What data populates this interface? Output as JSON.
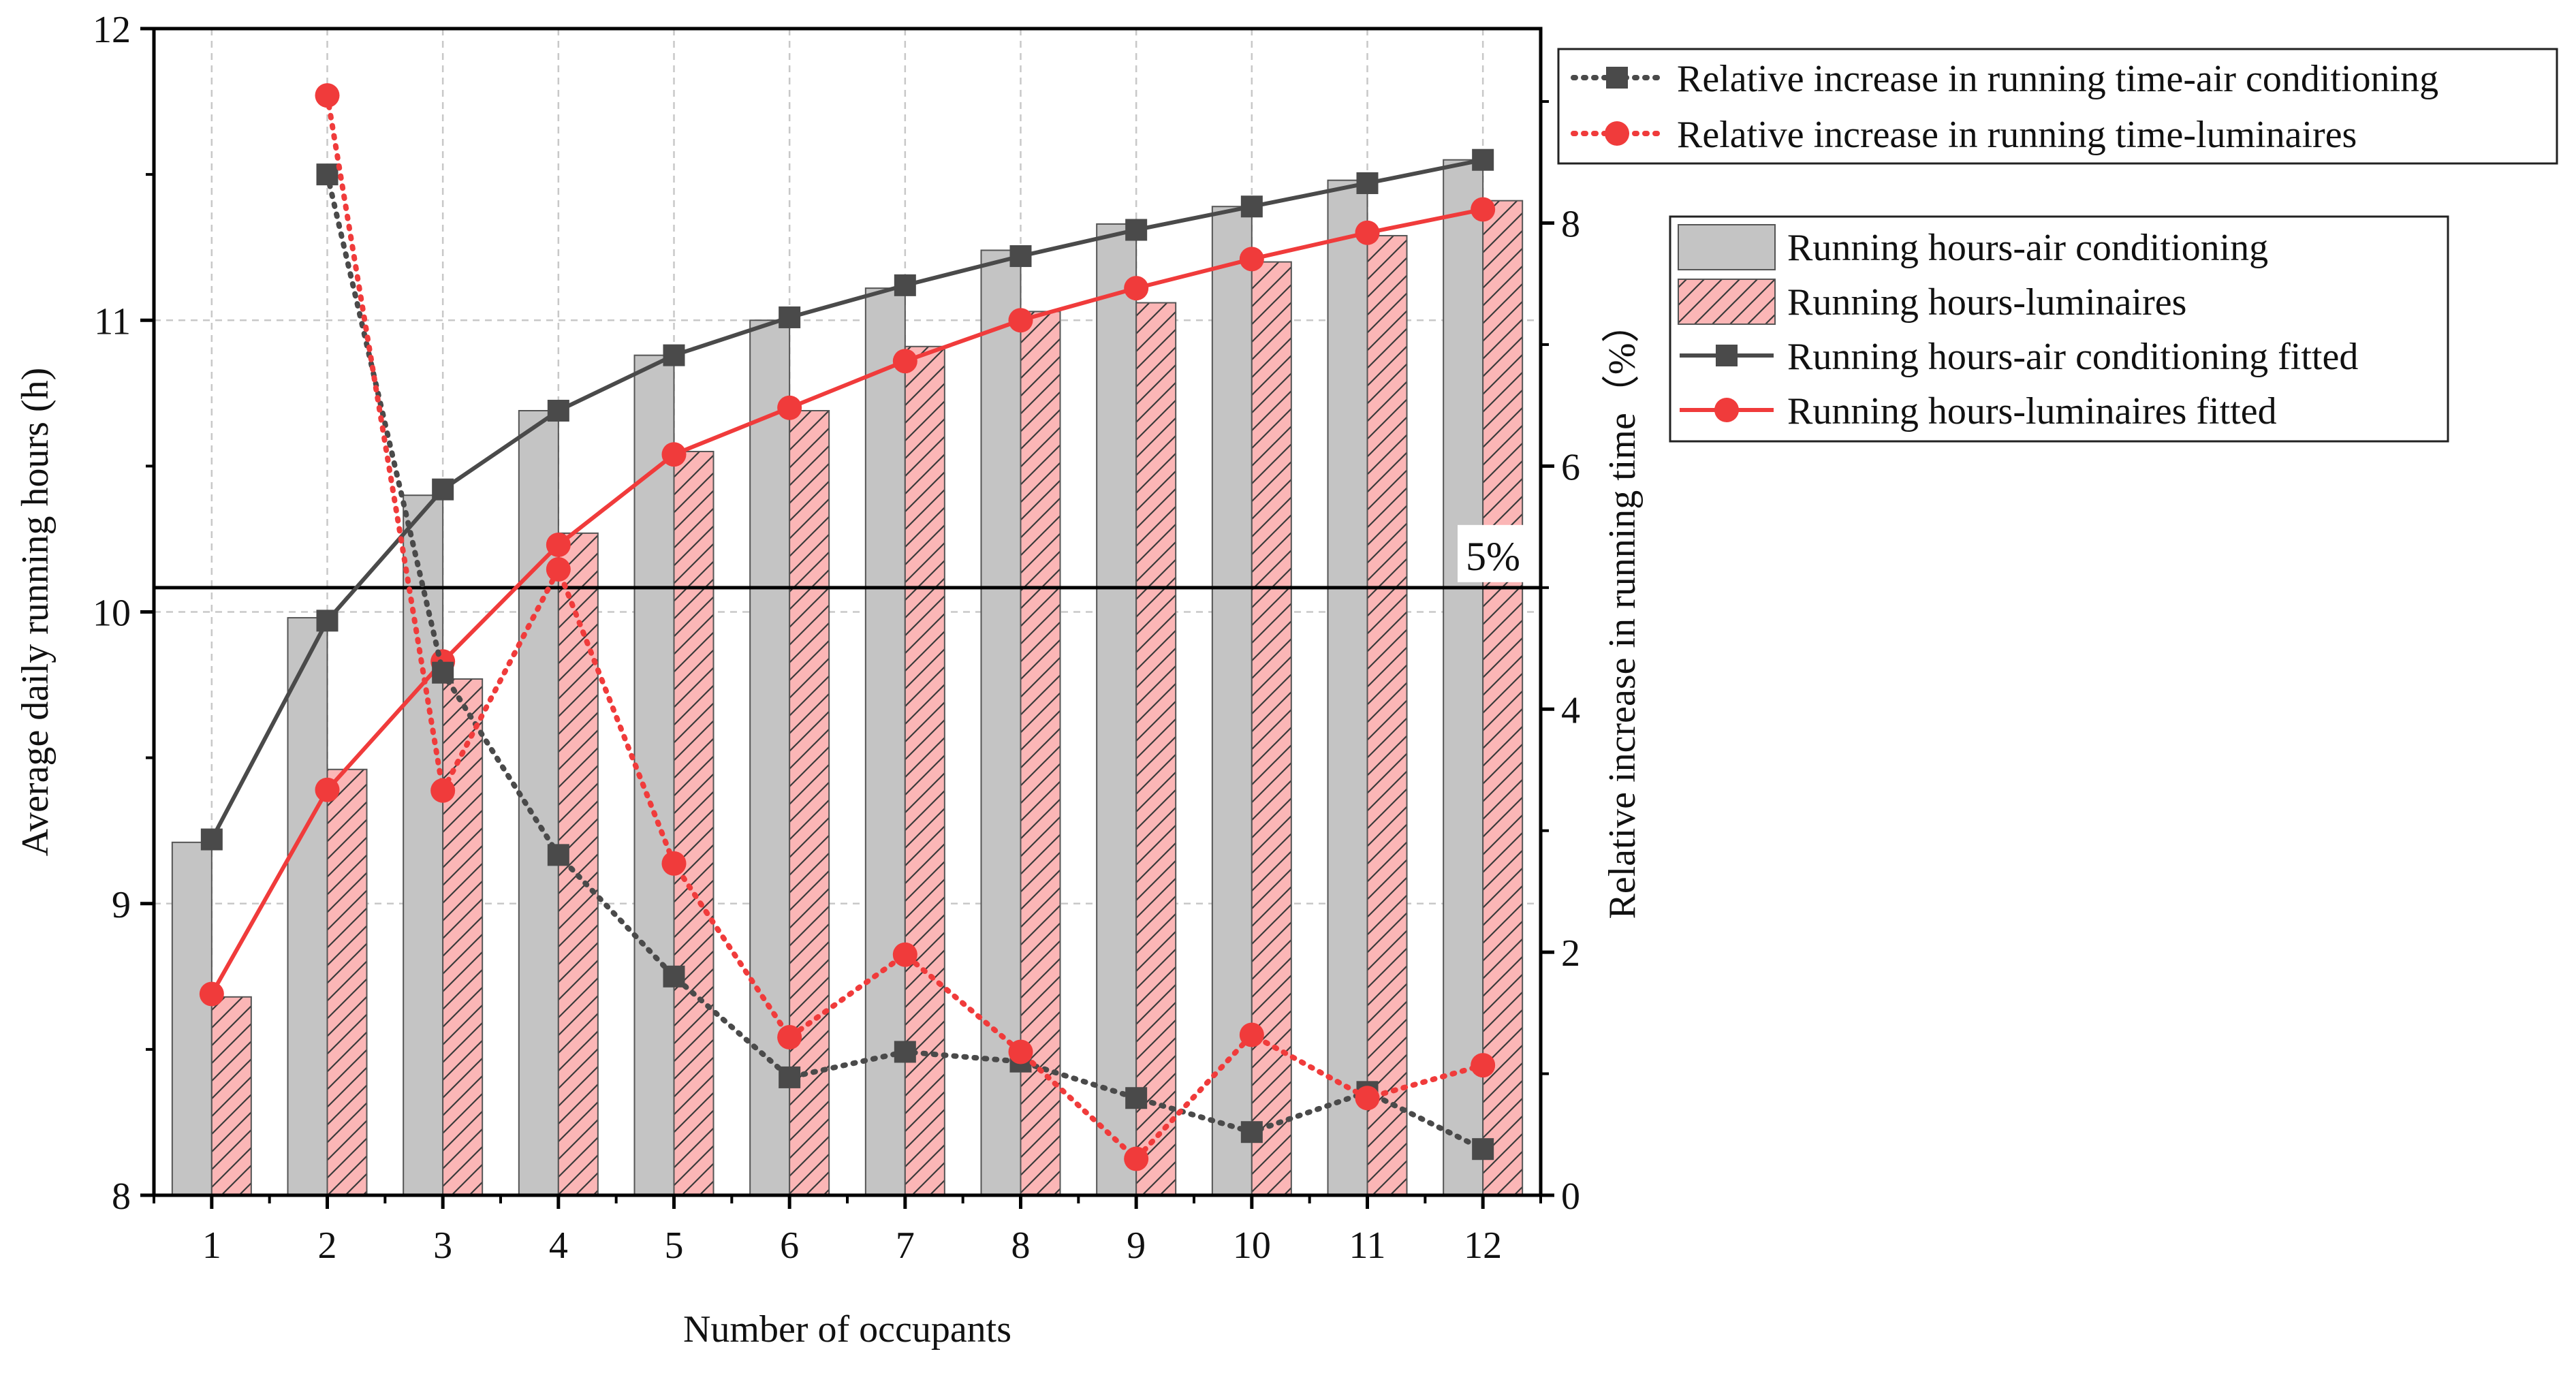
{
  "chart_data": {
    "type": "bar",
    "xlabel": "Number of occupants",
    "ylabel": "Average daily running hours (h)",
    "y2label": "Relative increase in running time（%）",
    "categories": [
      "1",
      "2",
      "3",
      "4",
      "5",
      "6",
      "7",
      "8",
      "9",
      "10",
      "11",
      "12"
    ],
    "ylim": [
      8,
      12
    ],
    "y2lim": [
      0,
      9.6
    ],
    "yticks": [
      "8",
      "9",
      "10",
      "11",
      "12"
    ],
    "y2ticks": [
      "0",
      "2",
      "4",
      "6",
      "8"
    ],
    "grid": true,
    "threshold": {
      "y2_value": 5,
      "label": "5%"
    },
    "bar_series": [
      {
        "name": "Running hours-air conditioning",
        "values": [
          9.21,
          9.98,
          10.4,
          10.69,
          10.88,
          11.0,
          11.11,
          11.24,
          11.33,
          11.39,
          11.48,
          11.55
        ],
        "color": "#c4c4c4",
        "pattern": "solid"
      },
      {
        "name": "Running hours-luminaires",
        "values": [
          8.68,
          9.46,
          9.77,
          10.27,
          10.55,
          10.69,
          10.91,
          11.03,
          11.06,
          11.2,
          11.29,
          11.41
        ],
        "color": "#fbb6b6",
        "pattern": "hatch"
      }
    ],
    "fit_series": [
      {
        "name": "Running hours-air conditioning fitted",
        "values": [
          9.22,
          9.97,
          10.42,
          10.69,
          10.88,
          11.01,
          11.12,
          11.22,
          11.31,
          11.39,
          11.47,
          11.55
        ],
        "color": "#4a4a4a",
        "marker": "square"
      },
      {
        "name": "Running hours-luminaires fitted",
        "values": [
          8.69,
          9.39,
          9.83,
          10.23,
          10.54,
          10.7,
          10.86,
          11.0,
          11.11,
          11.21,
          11.3,
          11.38
        ],
        "color": "#f03b3b",
        "marker": "circle"
      }
    ],
    "relative_series": [
      {
        "name": "Relative increase in running time-air conditioning",
        "x": [
          2,
          3,
          4,
          5,
          6,
          7,
          8,
          9,
          10,
          11,
          12
        ],
        "values": [
          8.4,
          4.3,
          2.8,
          1.8,
          0.97,
          1.18,
          1.1,
          0.8,
          0.52,
          0.85,
          0.38
        ],
        "color": "#4a4a4a",
        "marker": "square"
      },
      {
        "name": "Relative increase in running time-luminaires",
        "x": [
          2,
          3,
          4,
          5,
          6,
          7,
          8,
          9,
          10,
          11,
          12
        ],
        "values": [
          9.05,
          3.33,
          5.15,
          2.73,
          1.3,
          1.98,
          1.18,
          0.3,
          1.32,
          0.8,
          1.07
        ],
        "color": "#f03b3b",
        "marker": "circle"
      }
    ],
    "legend_top": [
      "Relative increase in running time-air conditioning",
      "Relative increase in running time-luminaires"
    ],
    "legend_bottom": [
      "Running hours-air conditioning",
      "Running hours-luminaires",
      "Running hours-air conditioning fitted",
      "Running hours-luminaires fitted"
    ]
  }
}
